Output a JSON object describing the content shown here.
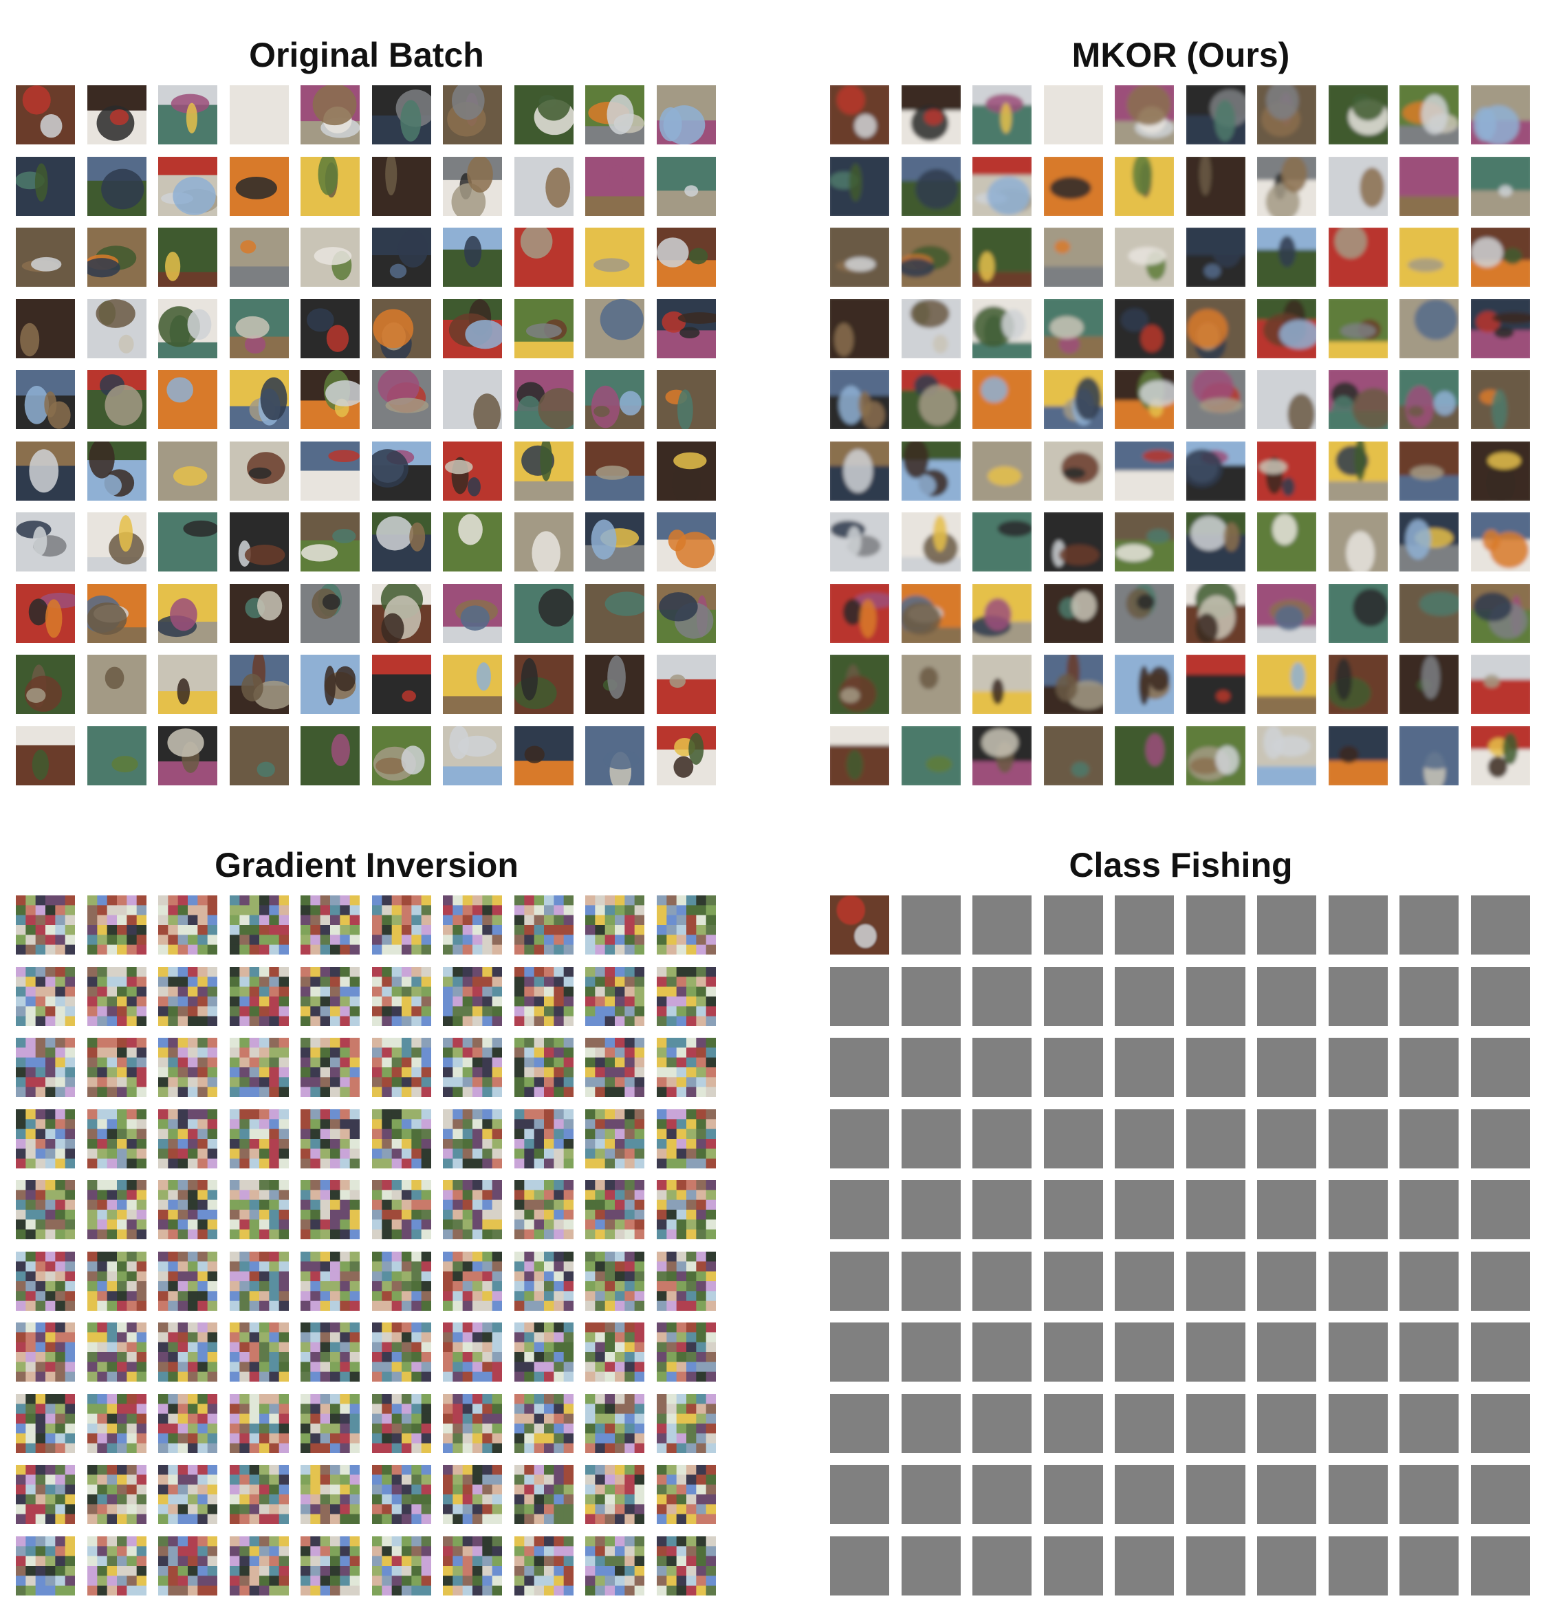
{
  "panels": [
    {
      "id": "original-batch",
      "title": "Original Batch",
      "content": "photo-thumbnails",
      "rows": 10,
      "cols": 10,
      "blur": 0
    },
    {
      "id": "mkor-ours",
      "title": "MKOR (Ours)",
      "content": "reconstructed-thumbnails",
      "rows": 10,
      "cols": 10,
      "blur": 3
    },
    {
      "id": "gradient-inversion",
      "title": "Gradient Inversion",
      "content": "noisy-patch-thumbnails",
      "rows": 10,
      "cols": 10
    },
    {
      "id": "class-fishing",
      "title": "Class Fishing",
      "content": "single-recovered-image-then-grey",
      "rows": 10,
      "cols": 10,
      "recovered_count": 1,
      "placeholder_color": "#808080"
    }
  ],
  "palette": [
    "#6b5a44",
    "#8a6f4d",
    "#3f5a2f",
    "#5e7d3a",
    "#a39a85",
    "#c9c4b6",
    "#2f3b4d",
    "#556b8a",
    "#8fb0d4",
    "#b9362d",
    "#d87a2a",
    "#e5c04a",
    "#6a3c2a",
    "#3a2a22",
    "#7c7f82",
    "#cfd2d6",
    "#e8e4de",
    "#9c4f7a",
    "#4c7a6b",
    "#2a2a2a"
  ],
  "patch_palette": [
    "#7fa35a",
    "#c9a5d8",
    "#6c8fd0",
    "#a04a3a",
    "#e4c34f",
    "#5f7a4a",
    "#d7d2c8",
    "#3c3a4f",
    "#c97a6a",
    "#8aa0b8",
    "#4f6f3a",
    "#b7d0e0",
    "#8e6a5a",
    "#e0e7d8",
    "#6a4a6e",
    "#99b06a",
    "#2f3a2f",
    "#d8b6a0",
    "#5a8fa0",
    "#b04050"
  ]
}
